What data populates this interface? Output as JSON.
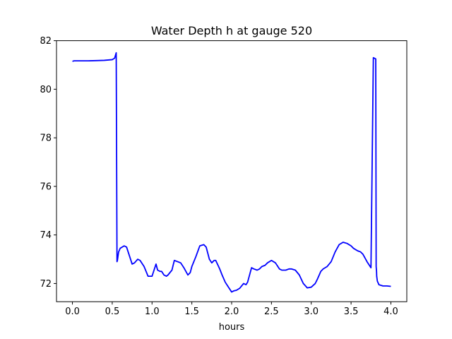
{
  "chart_data": {
    "type": "line",
    "title": "Water Depth h at gauge 520",
    "xlabel": "hours",
    "ylabel": "",
    "xlim": [
      -0.2,
      4.2
    ],
    "ylim": [
      71.25,
      82
    ],
    "xticks": [
      0.0,
      0.5,
      1.0,
      1.5,
      2.0,
      2.5,
      3.0,
      3.5,
      4.0
    ],
    "xtick_labels": [
      "0.0",
      "0.5",
      "1.0",
      "1.5",
      "2.0",
      "2.5",
      "3.0",
      "3.5",
      "4.0"
    ],
    "yticks": [
      72,
      74,
      76,
      78,
      80,
      82
    ],
    "ytick_labels": [
      "72",
      "74",
      "76",
      "78",
      "80",
      "82"
    ],
    "grid": false,
    "legend": "none",
    "series": [
      {
        "color": "#0000ff",
        "x": [
          0.0,
          0.02,
          0.1,
          0.2,
          0.3,
          0.4,
          0.5,
          0.53,
          0.55,
          0.56,
          0.565,
          0.58,
          0.6,
          0.65,
          0.68,
          0.72,
          0.75,
          0.78,
          0.82,
          0.85,
          0.9,
          0.95,
          1.0,
          1.02,
          1.05,
          1.07,
          1.1,
          1.12,
          1.15,
          1.18,
          1.2,
          1.25,
          1.28,
          1.32,
          1.36,
          1.4,
          1.45,
          1.48,
          1.5,
          1.55,
          1.6,
          1.65,
          1.68,
          1.72,
          1.75,
          1.78,
          1.8,
          1.85,
          1.88,
          1.92,
          1.95,
          2.0,
          2.03,
          2.06,
          2.1,
          2.15,
          2.18,
          2.2,
          2.25,
          2.28,
          2.32,
          2.35,
          2.38,
          2.42,
          2.45,
          2.5,
          2.55,
          2.6,
          2.63,
          2.68,
          2.72,
          2.75,
          2.8,
          2.85,
          2.9,
          2.95,
          3.0,
          3.05,
          3.08,
          3.12,
          3.15,
          3.2,
          3.25,
          3.3,
          3.35,
          3.4,
          3.45,
          3.5,
          3.53,
          3.58,
          3.62,
          3.65,
          3.7,
          3.75,
          3.78,
          3.81,
          3.815,
          3.82,
          3.822,
          3.83,
          3.85,
          3.9,
          3.95,
          4.0
        ],
        "values": [
          81.15,
          81.17,
          81.17,
          81.17,
          81.18,
          81.19,
          81.22,
          81.28,
          81.5,
          72.9,
          72.95,
          73.3,
          73.45,
          73.55,
          73.5,
          73.1,
          72.8,
          72.85,
          73.0,
          72.95,
          72.7,
          72.3,
          72.3,
          72.5,
          72.8,
          72.55,
          72.5,
          72.5,
          72.35,
          72.3,
          72.35,
          72.55,
          72.95,
          72.9,
          72.85,
          72.65,
          72.35,
          72.45,
          72.7,
          73.1,
          73.55,
          73.6,
          73.5,
          73.0,
          72.85,
          72.95,
          72.95,
          72.6,
          72.35,
          72.05,
          71.9,
          71.65,
          71.7,
          71.72,
          71.8,
          72.0,
          71.95,
          72.05,
          72.65,
          72.6,
          72.55,
          72.6,
          72.7,
          72.75,
          72.85,
          72.95,
          72.85,
          72.6,
          72.55,
          72.55,
          72.6,
          72.6,
          72.55,
          72.35,
          72.0,
          71.82,
          71.85,
          72.0,
          72.2,
          72.5,
          72.6,
          72.7,
          72.9,
          73.3,
          73.6,
          73.7,
          73.65,
          73.55,
          73.45,
          73.35,
          73.3,
          73.2,
          72.9,
          72.65,
          81.3,
          81.25,
          72.7,
          72.5,
          72.3,
          72.1,
          71.95,
          71.9,
          71.9,
          71.88
        ]
      }
    ]
  }
}
